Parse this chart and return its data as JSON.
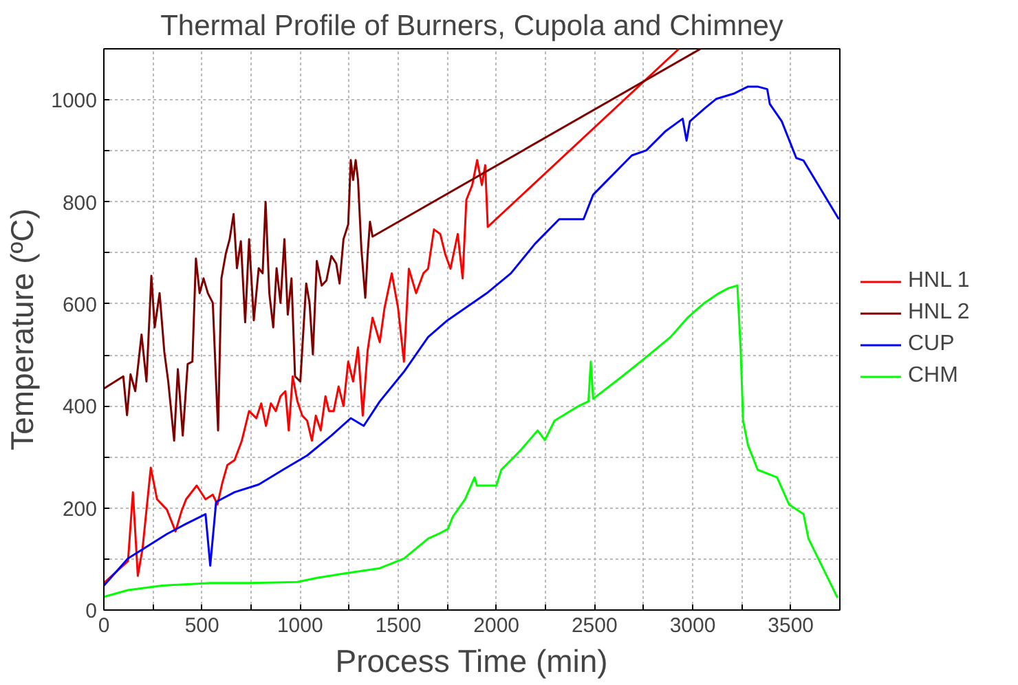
{
  "chart_data": {
    "type": "line",
    "title": "Thermal Profile of Burners, Cupola and Chimney",
    "xlabel": "Process Time (min)",
    "ylabel": "Temperature (ºC)",
    "xlim": [
      0,
      3750
    ],
    "ylim": [
      0,
      1100
    ],
    "xticks": [
      0,
      {
        "value": 250,
        "label": null
      },
      500,
      {
        "value": 750,
        "label": null
      },
      1000,
      {
        "value": 1250,
        "label": null
      },
      1500,
      {
        "value": 1750,
        "label": null
      },
      2000,
      {
        "value": 2250,
        "label": null
      },
      2500,
      {
        "value": 2750,
        "label": null
      },
      3000,
      {
        "value": 3250,
        "label": null
      },
      3500
    ],
    "yticks": [
      0,
      {
        "value": 100,
        "label": null
      },
      200,
      {
        "value": 300,
        "label": null
      },
      400,
      {
        "value": 500,
        "label": null
      },
      600,
      {
        "value": 700,
        "label": null
      },
      800,
      {
        "value": 900,
        "label": null
      },
      1000
    ],
    "grid": true,
    "legend": "right",
    "line_style": "solid",
    "marker": "none",
    "series": [
      {
        "name": "HNL 1",
        "color": "#ff0000",
        "x": [
          0,
          123,
          148,
          173,
          197,
          239,
          271,
          321,
          365,
          395,
          419,
          473,
          518,
          555,
          579,
          604,
          629,
          666,
          703,
          740,
          777,
          802,
          826,
          851,
          876,
          900,
          925,
          942,
          962,
          986,
          1011,
          1036,
          1060,
          1080,
          1105,
          1129,
          1147,
          1171,
          1196,
          1221,
          1245,
          1270,
          1295,
          1319,
          1344,
          1369,
          1406,
          1430,
          1467,
          1499,
          1529,
          1554,
          1591,
          1628,
          1652,
          1682,
          1714,
          1739,
          1766,
          1803,
          1828,
          1847,
          1877,
          1902,
          1926,
          1943,
          1956,
          2930
        ],
        "values": [
          53,
          96,
          231,
          67,
          120,
          279,
          217,
          197,
          154,
          193,
          217,
          244,
          217,
          226,
          207,
          250,
          284,
          294,
          332,
          390,
          376,
          405,
          361,
          405,
          390,
          419,
          429,
          352,
          458,
          409,
          381,
          371,
          332,
          381,
          352,
          419,
          390,
          390,
          438,
          400,
          487,
          448,
          515,
          381,
          509,
          573,
          525,
          592,
          660,
          592,
          487,
          669,
          621,
          660,
          669,
          746,
          737,
          698,
          669,
          737,
          650,
          804,
          833,
          882,
          833,
          872,
          751,
          1100
        ]
      },
      {
        "name": "HNL 2",
        "color": "#800000",
        "x": [
          0,
          99,
          118,
          136,
          160,
          192,
          217,
          242,
          259,
          284,
          308,
          328,
          358,
          377,
          402,
          427,
          451,
          469,
          488,
          508,
          530,
          555,
          582,
          599,
          621,
          641,
          661,
          678,
          698,
          720,
          740,
          764,
          789,
          809,
          824,
          843,
          863,
          880,
          900,
          920,
          937,
          956,
          974,
          1001,
          1031,
          1048,
          1065,
          1085,
          1110,
          1134,
          1159,
          1184,
          1201,
          1221,
          1245,
          1258,
          1270,
          1283,
          1295,
          1312,
          1332,
          1344,
          1356,
          1369,
          3040
        ],
        "values": [
          434,
          458,
          382,
          462,
          429,
          540,
          448,
          655,
          554,
          621,
          506,
          448,
          332,
          472,
          342,
          482,
          487,
          689,
          621,
          650,
          621,
          602,
          352,
          650,
          698,
          727,
          776,
          670,
          723,
          564,
          727,
          568,
          670,
          660,
          800,
          621,
          554,
          670,
          602,
          727,
          579,
          650,
          458,
          448,
          640,
          602,
          501,
          684,
          636,
          646,
          694,
          679,
          640,
          727,
          756,
          882,
          843,
          882,
          843,
          708,
          612,
          698,
          761,
          732,
          1100
        ]
      },
      {
        "name": "CUP",
        "color": "#0000ff",
        "x": [
          0,
          123,
          222,
          321,
          419,
          518,
          542,
          572,
          666,
          789,
          913,
          1036,
          1159,
          1258,
          1324,
          1406,
          1529,
          1652,
          1751,
          1827,
          1951,
          2074,
          2197,
          2320,
          2444,
          2493,
          2567,
          2690,
          2764,
          2863,
          2949,
          2969,
          2986,
          3060,
          3121,
          3208,
          3282,
          3331,
          3380,
          3393,
          3454,
          3528,
          3565,
          3745
        ],
        "values": [
          48,
          101,
          125,
          149,
          169,
          188,
          87,
          212,
          231,
          246,
          275,
          303,
          342,
          376,
          361,
          409,
          467,
          535,
          568,
          588,
          621,
          660,
          718,
          766,
          766,
          814,
          843,
          891,
          901,
          939,
          963,
          920,
          958,
          983,
          1002,
          1012,
          1026,
          1026,
          1021,
          992,
          958,
          886,
          881,
          766
        ]
      },
      {
        "name": "CHM",
        "color": "#00ff00",
        "x": [
          0,
          123,
          296,
          542,
          740,
          986,
          1085,
          1233,
          1406,
          1529,
          1652,
          1704,
          1753,
          1778,
          1840,
          1889,
          1901,
          2000,
          2025,
          2123,
          2210,
          2247,
          2296,
          2419,
          2469,
          2481,
          2493,
          2641,
          2764,
          2887,
          2974,
          3060,
          3134,
          3183,
          3228,
          3245,
          3257,
          3282,
          3331,
          3430,
          3491,
          3565,
          3590,
          3738
        ],
        "values": [
          26,
          39,
          48,
          53,
          53,
          55,
          63,
          72,
          82,
          101,
          140,
          149,
          159,
          183,
          217,
          260,
          244,
          244,
          275,
          313,
          352,
          333,
          371,
          400,
          409,
          487,
          414,
          458,
          496,
          535,
          573,
          602,
          621,
          631,
          636,
          506,
          371,
          323,
          275,
          260,
          207,
          188,
          140,
          24
        ]
      }
    ]
  }
}
